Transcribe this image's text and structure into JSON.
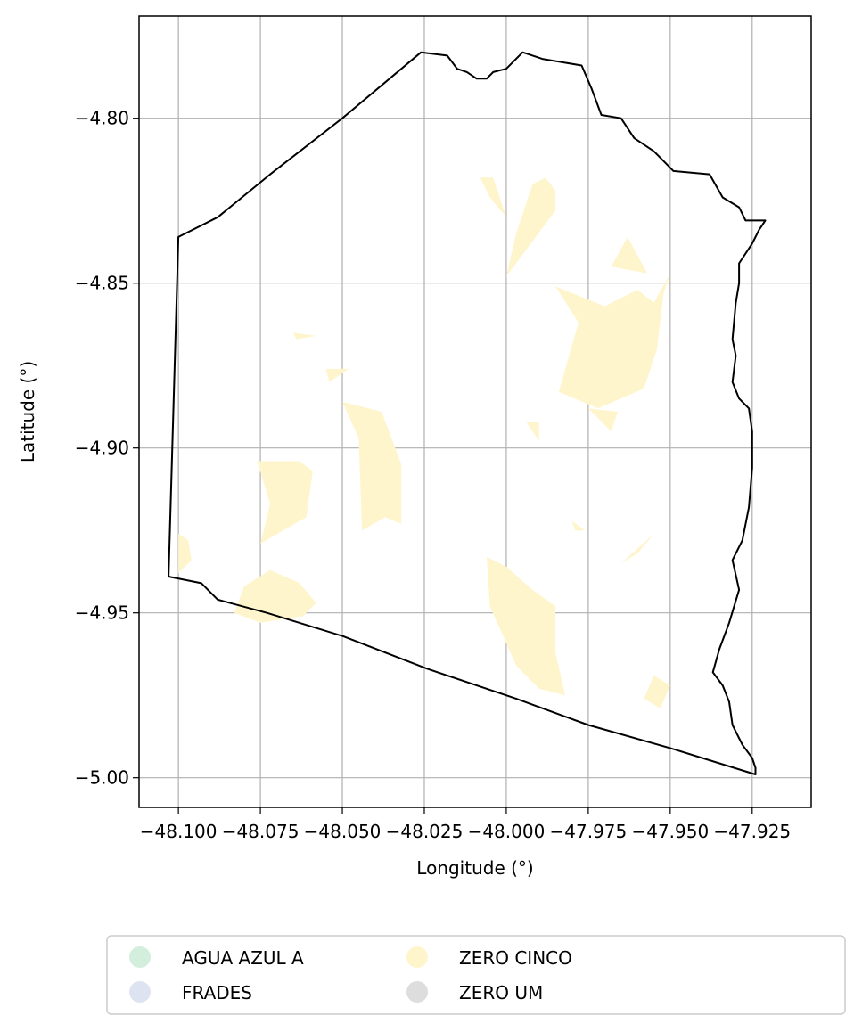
{
  "chart_data": {
    "type": "map",
    "xlabel": "Longitude (°)",
    "ylabel": "Latitude (°)",
    "xlim": [
      -48.112,
      -47.907
    ],
    "ylim": [
      -5.009,
      -4.769
    ],
    "x_ticks": [
      {
        "value": -48.1,
        "label": "−48.100"
      },
      {
        "value": -48.075,
        "label": "−48.075"
      },
      {
        "value": -48.05,
        "label": "−48.050"
      },
      {
        "value": -48.025,
        "label": "−48.025"
      },
      {
        "value": -48.0,
        "label": "−48.000"
      },
      {
        "value": -47.975,
        "label": "−47.975"
      },
      {
        "value": -47.95,
        "label": "−47.950"
      },
      {
        "value": -47.925,
        "label": "−47.925"
      }
    ],
    "y_ticks": [
      {
        "value": -4.8,
        "label": "−4.80"
      },
      {
        "value": -4.85,
        "label": "−4.85"
      },
      {
        "value": -4.9,
        "label": "−4.90"
      },
      {
        "value": -4.95,
        "label": "−4.95"
      },
      {
        "value": -5.0,
        "label": "−5.00"
      }
    ],
    "grid": true,
    "legend_placement": "below",
    "legend": [
      {
        "label": "AGUA AZUL A",
        "color": "#d4eedd"
      },
      {
        "label": "FRADES",
        "color": "#dde3f0"
      },
      {
        "label": "ZERO CINCO",
        "color": "#fff5cc"
      },
      {
        "label": "ZERO UM",
        "color": "#dddddd"
      }
    ],
    "boundary": [
      [
        -48.088,
        -4.83
      ],
      [
        -48.072,
        -4.817
      ],
      [
        -48.05,
        -4.8
      ],
      [
        -48.026,
        -4.78
      ],
      [
        -48.018,
        -4.781
      ],
      [
        -48.015,
        -4.785
      ],
      [
        -48.012,
        -4.786
      ],
      [
        -48.009,
        -4.788
      ],
      [
        -48.006,
        -4.788
      ],
      [
        -48.004,
        -4.786
      ],
      [
        -48.0,
        -4.785
      ],
      [
        -47.995,
        -4.78
      ],
      [
        -47.989,
        -4.782
      ],
      [
        -47.977,
        -4.784
      ],
      [
        -47.974,
        -4.791
      ],
      [
        -47.971,
        -4.799
      ],
      [
        -47.965,
        -4.8
      ],
      [
        -47.961,
        -4.806
      ],
      [
        -47.955,
        -4.81
      ],
      [
        -47.949,
        -4.816
      ],
      [
        -47.938,
        -4.817
      ],
      [
        -47.934,
        -4.824
      ],
      [
        -47.929,
        -4.827
      ],
      [
        -47.927,
        -4.831
      ],
      [
        -47.921,
        -4.831
      ],
      [
        -47.923,
        -4.834
      ],
      [
        -47.925,
        -4.838
      ],
      [
        -47.929,
        -4.844
      ],
      [
        -47.929,
        -4.85
      ],
      [
        -47.93,
        -4.856
      ],
      [
        -47.931,
        -4.867
      ],
      [
        -47.93,
        -4.872
      ],
      [
        -47.931,
        -4.88
      ],
      [
        -47.929,
        -4.885
      ],
      [
        -47.926,
        -4.888
      ],
      [
        -47.925,
        -4.895
      ],
      [
        -47.925,
        -4.906
      ],
      [
        -47.926,
        -4.918
      ],
      [
        -47.928,
        -4.928
      ],
      [
        -47.931,
        -4.934
      ],
      [
        -47.929,
        -4.943
      ],
      [
        -47.932,
        -4.953
      ],
      [
        -47.935,
        -4.961
      ],
      [
        -47.937,
        -4.968
      ],
      [
        -47.934,
        -4.972
      ],
      [
        -47.932,
        -4.977
      ],
      [
        -47.931,
        -4.984
      ],
      [
        -47.928,
        -4.99
      ],
      [
        -47.925,
        -4.994
      ],
      [
        -47.924,
        -4.997
      ],
      [
        -47.924,
        -4.999
      ],
      [
        -47.95,
        -4.991
      ],
      [
        -47.975,
        -4.984
      ],
      [
        -47.997,
        -4.976
      ],
      [
        -48.024,
        -4.967
      ],
      [
        -48.05,
        -4.957
      ],
      [
        -48.073,
        -4.95
      ],
      [
        -48.088,
        -4.946
      ],
      [
        -48.093,
        -4.941
      ],
      [
        -48.103,
        -4.939
      ],
      [
        -48.1,
        -4.836
      ]
    ],
    "regions": [
      {
        "name": "ZERO CINCO",
        "color": "#fff5cc",
        "polygons": [
          [
            [
              -48.0,
              -4.848
            ],
            [
              -47.985,
              -4.828
            ],
            [
              -47.985,
              -4.822
            ],
            [
              -47.988,
              -4.818
            ],
            [
              -47.992,
              -4.82
            ],
            [
              -47.997,
              -4.835
            ],
            [
              -48.0,
              -4.848
            ]
          ],
          [
            [
              -47.985,
              -4.851
            ],
            [
              -47.97,
              -4.857
            ],
            [
              -47.96,
              -4.852
            ],
            [
              -47.955,
              -4.856
            ],
            [
              -47.95,
              -4.847
            ],
            [
              -47.952,
              -4.853
            ],
            [
              -47.954,
              -4.87
            ],
            [
              -47.958,
              -4.882
            ],
            [
              -47.972,
              -4.888
            ],
            [
              -47.984,
              -4.883
            ],
            [
              -47.978,
              -4.862
            ],
            [
              -47.985,
              -4.851
            ]
          ],
          [
            [
              -47.963,
              -4.836
            ],
            [
              -47.968,
              -4.845
            ],
            [
              -47.957,
              -4.847
            ],
            [
              -47.963,
              -4.836
            ]
          ],
          [
            [
              -48.008,
              -4.818
            ],
            [
              -48.005,
              -4.824
            ],
            [
              -48.0,
              -4.83
            ],
            [
              -48.004,
              -4.818
            ],
            [
              -48.008,
              -4.818
            ]
          ],
          [
            [
              -48.05,
              -4.886
            ],
            [
              -48.038,
              -4.889
            ],
            [
              -48.032,
              -4.905
            ],
            [
              -48.032,
              -4.923
            ],
            [
              -48.037,
              -4.921
            ],
            [
              -48.044,
              -4.925
            ],
            [
              -48.045,
              -4.897
            ],
            [
              -48.05,
              -4.886
            ]
          ],
          [
            [
              -48.075,
              -4.929
            ],
            [
              -48.061,
              -4.921
            ],
            [
              -48.059,
              -4.907
            ],
            [
              -48.063,
              -4.904
            ],
            [
              -48.076,
              -4.904
            ],
            [
              -48.072,
              -4.917
            ],
            [
              -48.075,
              -4.929
            ]
          ],
          [
            [
              -48.072,
              -4.937
            ],
            [
              -48.063,
              -4.941
            ],
            [
              -48.058,
              -4.947
            ],
            [
              -48.062,
              -4.951
            ],
            [
              -48.075,
              -4.953
            ],
            [
              -48.083,
              -4.95
            ],
            [
              -48.08,
              -4.942
            ],
            [
              -48.072,
              -4.937
            ]
          ],
          [
            [
              -48.006,
              -4.933
            ],
            [
              -48.0,
              -4.936
            ],
            [
              -47.992,
              -4.943
            ],
            [
              -47.985,
              -4.948
            ],
            [
              -47.985,
              -4.962
            ],
            [
              -47.982,
              -4.975
            ],
            [
              -47.99,
              -4.973
            ],
            [
              -47.997,
              -4.966
            ],
            [
              -48.001,
              -4.957
            ],
            [
              -48.005,
              -4.948
            ],
            [
              -48.006,
              -4.933
            ]
          ],
          [
            [
              -47.955,
              -4.969
            ],
            [
              -47.95,
              -4.972
            ],
            [
              -47.953,
              -4.979
            ],
            [
              -47.958,
              -4.976
            ],
            [
              -47.955,
              -4.969
            ]
          ],
          [
            [
              -47.975,
              -4.888
            ],
            [
              -47.966,
              -4.889
            ],
            [
              -47.968,
              -4.895
            ],
            [
              -47.975,
              -4.888
            ]
          ],
          [
            [
              -47.994,
              -4.892
            ],
            [
              -47.99,
              -4.892
            ],
            [
              -47.99,
              -4.898
            ],
            [
              -47.994,
              -4.892
            ]
          ],
          [
            [
              -48.065,
              -4.865
            ],
            [
              -48.058,
              -4.866
            ],
            [
              -48.064,
              -4.867
            ],
            [
              -48.065,
              -4.865
            ]
          ],
          [
            [
              -48.1,
              -4.926
            ],
            [
              -48.097,
              -4.928
            ],
            [
              -48.096,
              -4.934
            ],
            [
              -48.1,
              -4.938
            ],
            [
              -48.1,
              -4.926
            ]
          ],
          [
            [
              -48.055,
              -4.876
            ],
            [
              -48.048,
              -4.876
            ],
            [
              -48.054,
              -4.88
            ],
            [
              -48.055,
              -4.876
            ]
          ],
          [
            [
              -47.955,
              -4.926
            ],
            [
              -47.96,
              -4.932
            ],
            [
              -47.965,
              -4.935
            ],
            [
              -47.955,
              -4.926
            ]
          ],
          [
            [
              -47.98,
              -4.922
            ],
            [
              -47.976,
              -4.925
            ],
            [
              -47.979,
              -4.925
            ],
            [
              -47.98,
              -4.922
            ]
          ]
        ]
      }
    ]
  }
}
